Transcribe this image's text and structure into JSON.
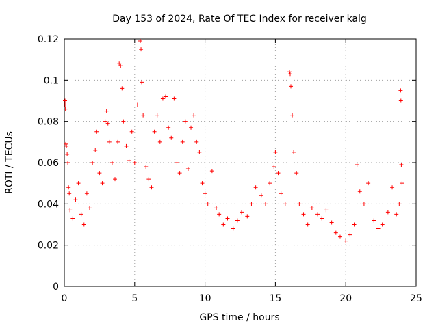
{
  "chart_data": {
    "type": "scatter",
    "title": "Day 153 of 2024, Rate Of TEC Index for receiver kalg",
    "xlabel": "GPS time / hours",
    "ylabel": "ROTI / TECUs",
    "xlim": [
      0,
      25
    ],
    "ylim": [
      0,
      0.12
    ],
    "xticks": [
      0,
      5,
      10,
      15,
      20,
      25
    ],
    "yticks": [
      0,
      0.02,
      0.04,
      0.06,
      0.08,
      0.1,
      0.12
    ],
    "xtick_labels": [
      "0",
      "5",
      "10",
      "15",
      "20",
      "25"
    ],
    "ytick_labels": [
      "0",
      "0.02",
      "0.04",
      "0.06",
      "0.08",
      "0.1",
      "0.12"
    ],
    "grid": true,
    "marker": "+",
    "color": "#ff0000",
    "series": [
      {
        "name": "ROTI",
        "points": [
          [
            0.05,
            0.09
          ],
          [
            0.05,
            0.088
          ],
          [
            0.08,
            0.086
          ],
          [
            0.1,
            0.069
          ],
          [
            0.15,
            0.068
          ],
          [
            0.2,
            0.064
          ],
          [
            0.25,
            0.06
          ],
          [
            0.3,
            0.048
          ],
          [
            0.35,
            0.045
          ],
          [
            0.4,
            0.037
          ],
          [
            0.6,
            0.033
          ],
          [
            0.8,
            0.042
          ],
          [
            1.0,
            0.05
          ],
          [
            1.2,
            0.035
          ],
          [
            1.4,
            0.03
          ],
          [
            1.6,
            0.045
          ],
          [
            1.8,
            0.038
          ],
          [
            2.0,
            0.06
          ],
          [
            2.2,
            0.066
          ],
          [
            2.3,
            0.075
          ],
          [
            2.5,
            0.055
          ],
          [
            2.7,
            0.05
          ],
          [
            2.9,
            0.08
          ],
          [
            3.0,
            0.085
          ],
          [
            3.1,
            0.079
          ],
          [
            3.2,
            0.07
          ],
          [
            3.4,
            0.06
          ],
          [
            3.6,
            0.052
          ],
          [
            3.8,
            0.07
          ],
          [
            3.9,
            0.108
          ],
          [
            4.0,
            0.107
          ],
          [
            4.1,
            0.096
          ],
          [
            4.2,
            0.08
          ],
          [
            4.4,
            0.068
          ],
          [
            4.6,
            0.061
          ],
          [
            4.8,
            0.075
          ],
          [
            5.0,
            0.06
          ],
          [
            5.2,
            0.088
          ],
          [
            5.4,
            0.119
          ],
          [
            5.45,
            0.115
          ],
          [
            5.5,
            0.099
          ],
          [
            5.6,
            0.083
          ],
          [
            5.8,
            0.058
          ],
          [
            6.0,
            0.052
          ],
          [
            6.2,
            0.048
          ],
          [
            6.4,
            0.075
          ],
          [
            6.6,
            0.083
          ],
          [
            6.8,
            0.07
          ],
          [
            7.0,
            0.091
          ],
          [
            7.2,
            0.092
          ],
          [
            7.4,
            0.077
          ],
          [
            7.6,
            0.072
          ],
          [
            7.8,
            0.091
          ],
          [
            8.0,
            0.06
          ],
          [
            8.2,
            0.055
          ],
          [
            8.4,
            0.07
          ],
          [
            8.6,
            0.08
          ],
          [
            8.8,
            0.057
          ],
          [
            9.0,
            0.077
          ],
          [
            9.2,
            0.083
          ],
          [
            9.4,
            0.07
          ],
          [
            9.6,
            0.065
          ],
          [
            9.8,
            0.05
          ],
          [
            10.0,
            0.045
          ],
          [
            10.2,
            0.04
          ],
          [
            10.5,
            0.056
          ],
          [
            10.8,
            0.038
          ],
          [
            11.0,
            0.035
          ],
          [
            11.3,
            0.03
          ],
          [
            11.6,
            0.033
          ],
          [
            12.0,
            0.028
          ],
          [
            12.3,
            0.032
          ],
          [
            12.6,
            0.036
          ],
          [
            13.0,
            0.034
          ],
          [
            13.3,
            0.04
          ],
          [
            13.6,
            0.048
          ],
          [
            14.0,
            0.044
          ],
          [
            14.3,
            0.04
          ],
          [
            14.6,
            0.05
          ],
          [
            14.9,
            0.058
          ],
          [
            15.0,
            0.065
          ],
          [
            15.2,
            0.055
          ],
          [
            15.4,
            0.045
          ],
          [
            15.7,
            0.04
          ],
          [
            16.0,
            0.104
          ],
          [
            16.05,
            0.103
          ],
          [
            16.1,
            0.097
          ],
          [
            16.2,
            0.083
          ],
          [
            16.3,
            0.065
          ],
          [
            16.5,
            0.055
          ],
          [
            16.7,
            0.04
          ],
          [
            17.0,
            0.035
          ],
          [
            17.3,
            0.03
          ],
          [
            17.6,
            0.038
          ],
          [
            18.0,
            0.035
          ],
          [
            18.3,
            0.033
          ],
          [
            18.6,
            0.037
          ],
          [
            19.0,
            0.031
          ],
          [
            19.3,
            0.026
          ],
          [
            19.6,
            0.024
          ],
          [
            20.0,
            0.022
          ],
          [
            20.3,
            0.025
          ],
          [
            20.6,
            0.03
          ],
          [
            20.8,
            0.059
          ],
          [
            21.0,
            0.046
          ],
          [
            21.3,
            0.04
          ],
          [
            21.6,
            0.05
          ],
          [
            22.0,
            0.032
          ],
          [
            22.3,
            0.028
          ],
          [
            22.6,
            0.03
          ],
          [
            23.0,
            0.036
          ],
          [
            23.3,
            0.048
          ],
          [
            23.6,
            0.035
          ],
          [
            23.8,
            0.04
          ],
          [
            23.9,
            0.095
          ],
          [
            23.92,
            0.09
          ],
          [
            23.95,
            0.059
          ],
          [
            24.0,
            0.05
          ]
        ]
      }
    ]
  }
}
